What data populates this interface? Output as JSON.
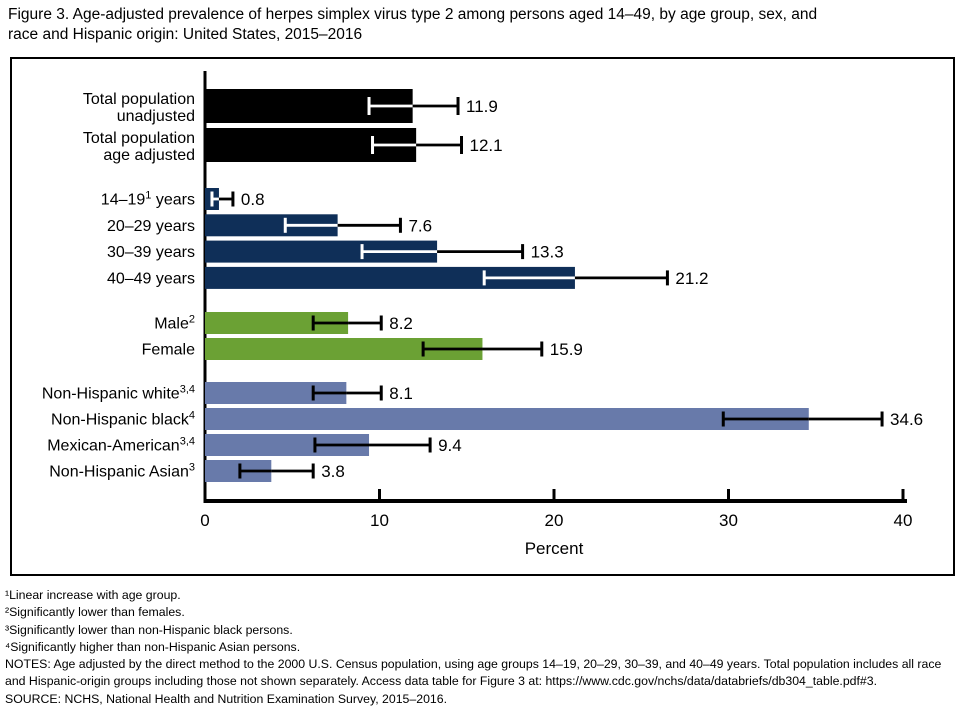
{
  "title": "Figure 3. Age-adjusted prevalence of herpes simplex virus type 2 among persons aged 14–49, by age group, sex, and\nrace and Hispanic origin: United States, 2015–2016",
  "chart_data": {
    "type": "bar",
    "orientation": "horizontal",
    "xlabel": "Percent",
    "xlim": [
      0,
      40
    ],
    "xticks": [
      0,
      10,
      20,
      30,
      40
    ],
    "grid": false,
    "error_bars": true,
    "colors": {
      "total": "#000000",
      "age_group": "#0f2f58",
      "sex": "#6ba134",
      "race": "#687aaa",
      "errorbar_on_dark": "#ffffff",
      "errorbar": "#000000"
    },
    "groups": [
      {
        "name": "total-population",
        "bar_color": "#000000",
        "dark_bar": true,
        "rows": [
          {
            "id": "total-unadjusted",
            "label_lines": [
              [
                {
                  "text": "Total population"
                }
              ],
              [
                {
                  "text": "unadjusted"
                }
              ]
            ],
            "value": 11.9,
            "value_label": "11.9",
            "ci_low": 9.4,
            "ci_high": 14.5
          },
          {
            "id": "total-age-adjusted",
            "label_lines": [
              [
                {
                  "text": "Total population"
                }
              ],
              [
                {
                  "text": "age adjusted"
                }
              ]
            ],
            "value": 12.1,
            "value_label": "12.1",
            "ci_low": 9.6,
            "ci_high": 14.7
          }
        ]
      },
      {
        "name": "age-group",
        "bar_color": "#0f2f58",
        "dark_bar": true,
        "rows": [
          {
            "id": "age-14-19",
            "label_lines": [
              [
                {
                  "text": "14–19"
                },
                {
                  "text": "1",
                  "sup": true
                },
                {
                  "text": " years"
                }
              ]
            ],
            "value": 0.8,
            "value_label": "0.8",
            "ci_low": 0.4,
            "ci_high": 1.6
          },
          {
            "id": "age-20-29",
            "label_lines": [
              [
                {
                  "text": "20–29 years"
                }
              ]
            ],
            "value": 7.6,
            "value_label": "7.6",
            "ci_low": 4.6,
            "ci_high": 11.2
          },
          {
            "id": "age-30-39",
            "label_lines": [
              [
                {
                  "text": "30–39 years"
                }
              ]
            ],
            "value": 13.3,
            "value_label": "13.3",
            "ci_low": 9.0,
            "ci_high": 18.2
          },
          {
            "id": "age-40-49",
            "label_lines": [
              [
                {
                  "text": "40–49 years"
                }
              ]
            ],
            "value": 21.2,
            "value_label": "21.2",
            "ci_low": 16.0,
            "ci_high": 26.5
          }
        ]
      },
      {
        "name": "sex",
        "bar_color": "#6ba134",
        "dark_bar": false,
        "rows": [
          {
            "id": "male",
            "label_lines": [
              [
                {
                  "text": "Male"
                },
                {
                  "text": "2",
                  "sup": true
                }
              ]
            ],
            "value": 8.2,
            "value_label": "8.2",
            "ci_low": 6.2,
            "ci_high": 10.1
          },
          {
            "id": "female",
            "label_lines": [
              [
                {
                  "text": "Female"
                }
              ]
            ],
            "value": 15.9,
            "value_label": "15.9",
            "ci_low": 12.5,
            "ci_high": 19.3
          }
        ]
      },
      {
        "name": "race-hispanic-origin",
        "bar_color": "#687aaa",
        "dark_bar": false,
        "rows": [
          {
            "id": "non-hispanic-white",
            "label_lines": [
              [
                {
                  "text": "Non-Hispanic white"
                },
                {
                  "text": "3,4",
                  "sup": true
                }
              ]
            ],
            "value": 8.1,
            "value_label": "8.1",
            "ci_low": 6.2,
            "ci_high": 10.1
          },
          {
            "id": "non-hispanic-black",
            "label_lines": [
              [
                {
                  "text": "Non-Hispanic black"
                },
                {
                  "text": "4",
                  "sup": true
                }
              ]
            ],
            "value": 34.6,
            "value_label": "34.6",
            "ci_low": 29.7,
            "ci_high": 38.8
          },
          {
            "id": "mexican-american",
            "label_lines": [
              [
                {
                  "text": "Mexican-American"
                },
                {
                  "text": "3,4",
                  "sup": true
                }
              ]
            ],
            "value": 9.4,
            "value_label": "9.4",
            "ci_low": 6.3,
            "ci_high": 12.9
          },
          {
            "id": "non-hispanic-asian",
            "label_lines": [
              [
                {
                  "text": "Non-Hispanic Asian"
                },
                {
                  "text": "3",
                  "sup": true
                }
              ]
            ],
            "value": 3.8,
            "value_label": "3.8",
            "ci_low": 2.0,
            "ci_high": 6.2
          }
        ]
      }
    ]
  },
  "footnotes": {
    "lines": [
      "¹Linear increase with age group.",
      "²Significantly lower than females.",
      "³Significantly lower than non-Hispanic black persons.",
      "⁴Significantly higher than non-Hispanic Asian persons.",
      "NOTES: Age adjusted by the direct method to the 2000 U.S. Census population, using age groups 14–19, 20–29, 30–39, and 40–49 years. Total population includes all race and Hispanic-origin groups including those not shown separately. Access data table for Figure 3 at: https://www.cdc.gov/nchs/data/databriefs/db304_table.pdf#3.",
      "SOURCE: NCHS, National Health and Nutrition Examination Survey, 2015–2016."
    ]
  }
}
